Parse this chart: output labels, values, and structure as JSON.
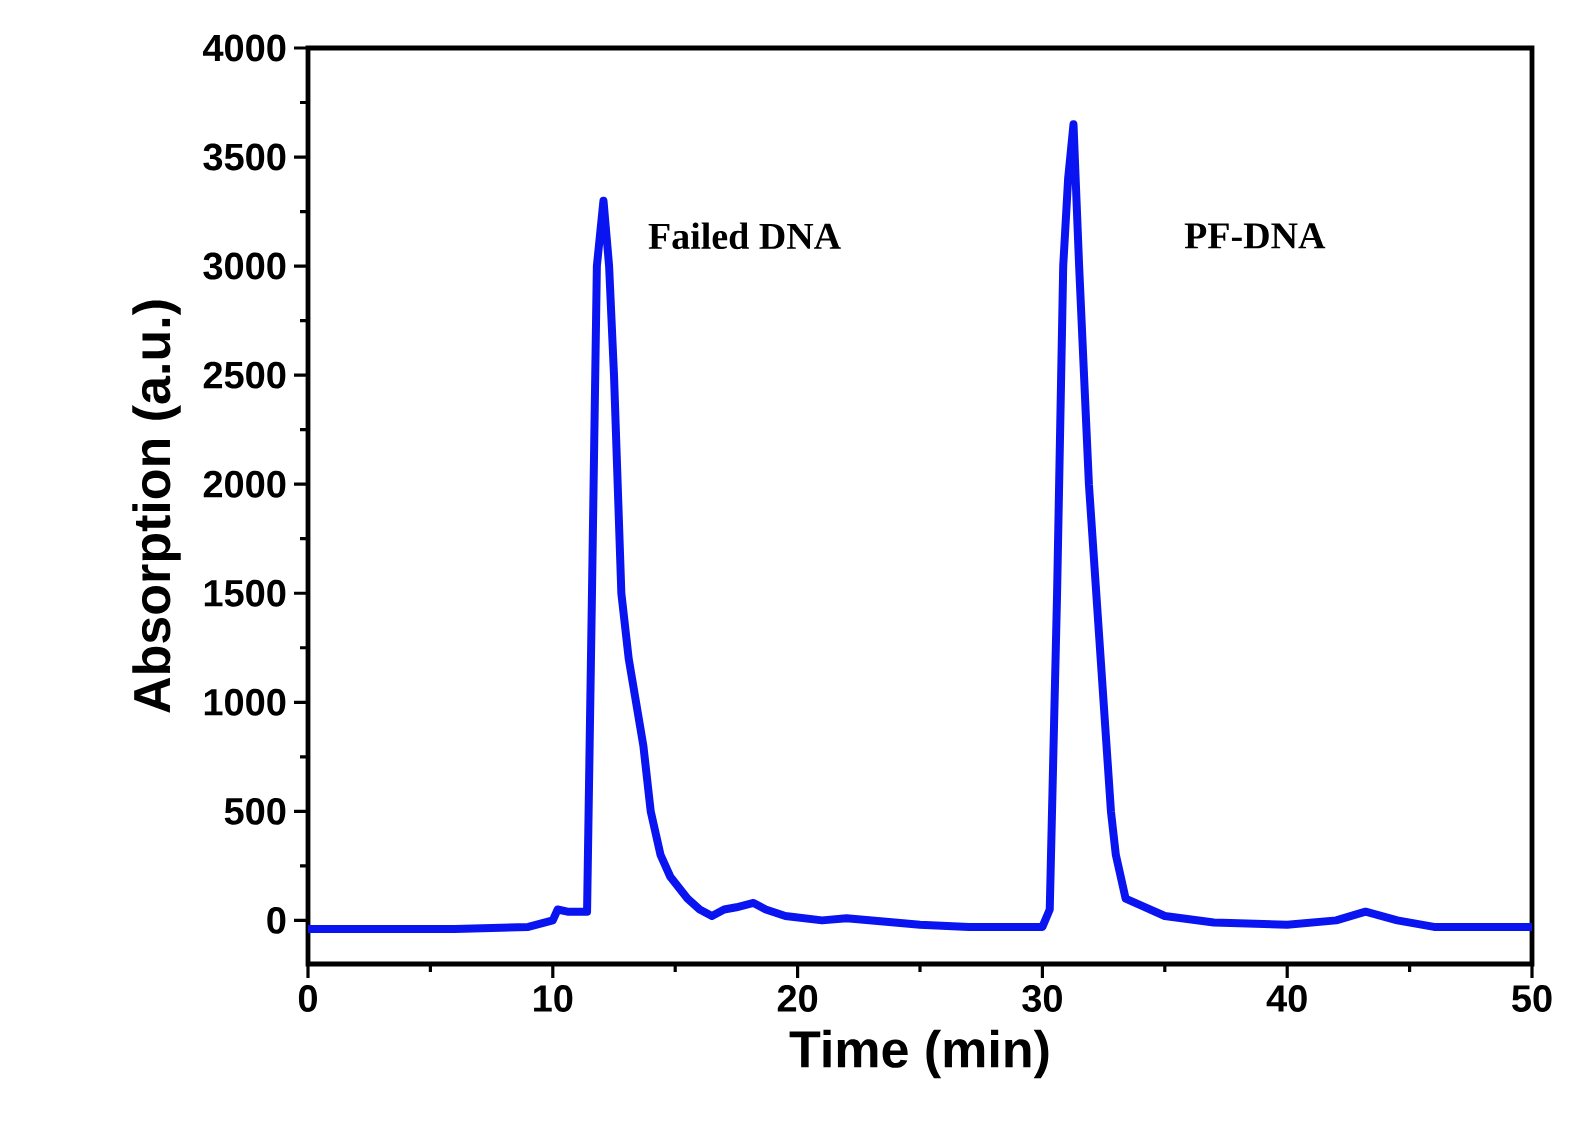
{
  "chart_data": {
    "type": "line",
    "xlabel": "Time (min)",
    "ylabel": "Absorption (a.u.)",
    "xlim": [
      0,
      50
    ],
    "ylim": [
      -200,
      4000
    ],
    "xticks": [
      0,
      10,
      20,
      30,
      40,
      50
    ],
    "yticks": [
      0,
      500,
      1000,
      1500,
      2000,
      2500,
      3000,
      3500,
      4000
    ],
    "marker": "none",
    "line_style": "solid",
    "annotations": [
      "Failed DNA",
      "PF-DNA"
    ],
    "series": [
      {
        "color": "#0a14f0",
        "x": [
          0,
          3,
          6,
          9,
          10,
          10.2,
          10.6,
          11,
          11.4,
          11.6,
          11.8,
          12.07,
          12.3,
          12.5,
          12.8,
          13.1,
          13.4,
          13.7,
          14.0,
          14.4,
          14.8,
          15.5,
          16.0,
          16.5,
          17.0,
          17.5,
          18.2,
          18.7,
          19.5,
          21,
          22,
          25,
          27,
          30,
          30.3,
          30.6,
          30.85,
          31.05,
          31.27,
          31.5,
          31.9,
          32.2,
          32.5,
          32.8,
          33.0,
          33.4,
          34.0,
          35,
          37,
          40,
          42,
          43.2,
          44.5,
          46,
          50
        ],
        "values": [
          -40,
          -40,
          -40,
          -30,
          0,
          50,
          40,
          40,
          40,
          1500,
          3000,
          3300,
          3000,
          2500,
          1500,
          1200,
          1000,
          800,
          500,
          300,
          200,
          100,
          50,
          20,
          50,
          60,
          80,
          50,
          20,
          0,
          10,
          -20,
          -30,
          -30,
          50,
          1500,
          3000,
          3400,
          3650,
          3000,
          2000,
          1500,
          1000,
          500,
          300,
          100,
          70,
          20,
          -10,
          -20,
          0,
          40,
          0,
          -30,
          -30
        ]
      }
    ]
  }
}
